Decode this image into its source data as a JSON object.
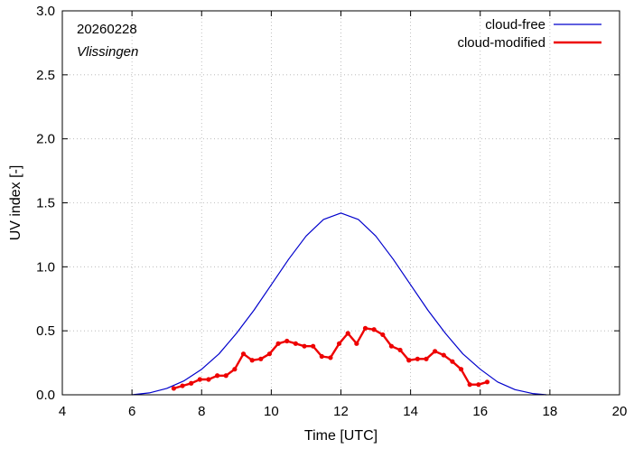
{
  "chart_data": {
    "type": "line",
    "title": "",
    "annotations": {
      "date": "20260228",
      "station": "Vlissingen"
    },
    "xlabel": "Time  [UTC]",
    "ylabel": "UV index  [-]",
    "xlim": [
      4,
      20
    ],
    "ylim": [
      0,
      3
    ],
    "xticks": [
      4,
      6,
      8,
      10,
      12,
      14,
      16,
      18,
      20
    ],
    "yticks": [
      0.0,
      0.5,
      1.0,
      1.5,
      2.0,
      2.5,
      3.0
    ],
    "ytick_labels": [
      "0.0",
      "0.5",
      "1.0",
      "1.5",
      "2.0",
      "2.5",
      "3.0"
    ],
    "legend_position": "top-right",
    "series": [
      {
        "name": "cloud-free",
        "color": "#0000cc",
        "style": "line",
        "x": [
          6.0,
          6.5,
          7.0,
          7.5,
          8.0,
          8.5,
          9.0,
          9.5,
          10.0,
          10.5,
          11.0,
          11.5,
          12.0,
          12.5,
          13.0,
          13.5,
          14.0,
          14.5,
          15.0,
          15.5,
          16.0,
          16.5,
          17.0,
          17.5,
          17.9
        ],
        "y": [
          0.0,
          0.015,
          0.05,
          0.11,
          0.2,
          0.32,
          0.48,
          0.66,
          0.86,
          1.06,
          1.24,
          1.37,
          1.42,
          1.37,
          1.24,
          1.06,
          0.86,
          0.66,
          0.48,
          0.32,
          0.2,
          0.1,
          0.04,
          0.01,
          0.0
        ]
      },
      {
        "name": "cloud-modified",
        "color": "#ee0000",
        "style": "line-points",
        "x": [
          7.2,
          7.45,
          7.7,
          7.95,
          8.2,
          8.45,
          8.7,
          8.95,
          9.2,
          9.45,
          9.7,
          9.95,
          10.2,
          10.45,
          10.7,
          10.95,
          11.2,
          11.45,
          11.7,
          11.95,
          12.2,
          12.45,
          12.7,
          12.95,
          13.2,
          13.45,
          13.7,
          13.95,
          14.2,
          14.45,
          14.7,
          14.95,
          15.2,
          15.45,
          15.7,
          15.95,
          16.2
        ],
        "y": [
          0.05,
          0.07,
          0.09,
          0.12,
          0.12,
          0.15,
          0.15,
          0.2,
          0.32,
          0.27,
          0.28,
          0.32,
          0.4,
          0.42,
          0.4,
          0.38,
          0.38,
          0.3,
          0.29,
          0.4,
          0.48,
          0.4,
          0.52,
          0.51,
          0.47,
          0.38,
          0.35,
          0.27,
          0.28,
          0.28,
          0.34,
          0.31,
          0.26,
          0.2,
          0.08,
          0.08,
          0.1
        ]
      }
    ]
  }
}
